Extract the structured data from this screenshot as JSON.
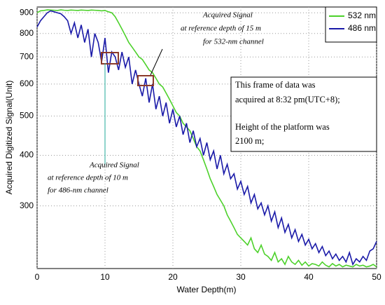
{
  "chart_data": {
    "type": "line",
    "log_y": true,
    "grid": true,
    "legend": "top-right",
    "xlabel": "Water Depth(m)",
    "ylabel": "Acquired Digitized Signal(Unit)",
    "xlim": [
      0,
      50
    ],
    "xticks": [
      0,
      10,
      20,
      30,
      40,
      50
    ],
    "ylim": [
      210,
      930
    ],
    "yticks": [
      300,
      400,
      500,
      600,
      700,
      800,
      900
    ],
    "x": [
      0,
      0.5,
      1,
      1.5,
      2,
      2.5,
      3,
      3.5,
      4,
      4.5,
      5,
      5.5,
      6,
      6.5,
      7,
      7.5,
      8,
      8.5,
      9,
      9.5,
      10,
      10.5,
      11,
      11.5,
      12,
      12.5,
      13,
      13.5,
      14,
      14.5,
      15,
      15.5,
      16,
      16.5,
      17,
      17.5,
      18,
      18.5,
      19,
      19.5,
      20,
      20.5,
      21,
      21.5,
      22,
      22.5,
      23,
      23.5,
      24,
      24.5,
      25,
      25.5,
      26,
      26.5,
      27,
      27.5,
      28,
      28.5,
      29,
      29.5,
      30,
      30.5,
      31,
      31.5,
      32,
      32.5,
      33,
      33.5,
      34,
      34.5,
      35,
      35.5,
      36,
      36.5,
      37,
      37.5,
      38,
      38.5,
      39,
      39.5,
      40,
      40.5,
      41,
      41.5,
      42,
      42.5,
      43,
      43.5,
      44,
      44.5,
      45,
      45.5,
      46,
      46.5,
      47,
      47.5,
      48,
      48.5,
      49,
      49.5,
      50
    ],
    "series": [
      {
        "name": "532 nm",
        "color": "#4cd12a",
        "values": [
          900,
          910,
          912,
          915,
          914,
          913,
          912,
          915,
          913,
          912,
          914,
          913,
          912,
          914,
          913,
          912,
          914,
          913,
          912,
          910,
          912,
          905,
          900,
          880,
          850,
          820,
          790,
          760,
          740,
          720,
          700,
          690,
          670,
          650,
          640,
          620,
          600,
          590,
          570,
          550,
          530,
          510,
          500,
          480,
          470,
          460,
          440,
          420,
          410,
          390,
          370,
          350,
          335,
          320,
          310,
          300,
          285,
          275,
          265,
          255,
          250,
          245,
          240,
          250,
          235,
          230,
          240,
          228,
          225,
          220,
          230,
          218,
          222,
          215,
          225,
          218,
          215,
          220,
          214,
          218,
          213,
          216,
          215,
          213,
          218,
          214,
          212,
          216,
          213,
          215,
          212,
          214,
          213,
          212,
          215,
          213,
          214,
          212,
          213,
          215,
          212
        ]
      },
      {
        "name": "486 nm",
        "color": "#1a1aa8",
        "values": [
          830,
          860,
          880,
          900,
          910,
          905,
          900,
          895,
          880,
          860,
          800,
          850,
          780,
          840,
          760,
          820,
          700,
          800,
          760,
          680,
          780,
          640,
          720,
          700,
          650,
          720,
          660,
          700,
          600,
          650,
          600,
          560,
          620,
          540,
          600,
          520,
          560,
          500,
          540,
          480,
          520,
          470,
          500,
          450,
          480,
          430,
          460,
          420,
          440,
          400,
          430,
          390,
          410,
          370,
          400,
          360,
          380,
          350,
          360,
          330,
          345,
          320,
          335,
          305,
          320,
          295,
          305,
          285,
          300,
          275,
          290,
          265,
          280,
          258,
          270,
          250,
          262,
          245,
          255,
          240,
          248,
          235,
          242,
          230,
          238,
          226,
          232,
          222,
          228,
          220,
          225,
          218,
          230,
          215,
          222,
          218,
          225,
          220,
          232,
          235,
          245
        ]
      }
    ],
    "annotations": [
      "Acquired Signal",
      "at reference depth of 15 m",
      "for 532-nm channel",
      "Acquired Signal",
      "at reference depth of 10 m",
      "for 486-nm channel"
    ],
    "info_box": [
      "This frame of data was",
      "acquired at 8:32 pm(UTC+8);",
      "Height of the platform was",
      "2100 m;"
    ]
  }
}
